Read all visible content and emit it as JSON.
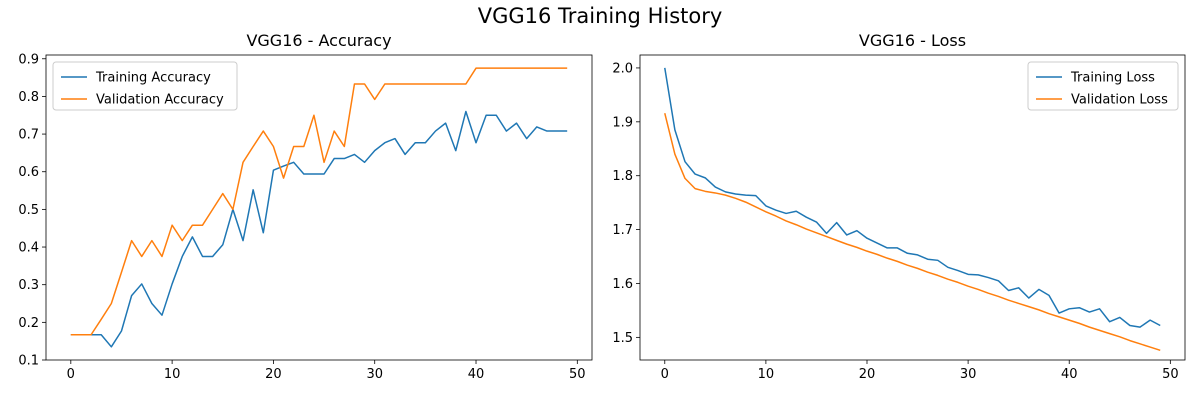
{
  "figure": {
    "title": "VGG16 Training History"
  },
  "colors": {
    "training": "#1f77b4",
    "validation": "#ff7f0e",
    "frame": "#000000",
    "legend_border": "#cccccc"
  },
  "chart_data": [
    {
      "type": "line",
      "title": "VGG16 - Accuracy",
      "xlabel": "",
      "ylabel": "",
      "xlim": [
        -2.45,
        51.45
      ],
      "ylim": [
        0.1,
        0.91
      ],
      "xticks": [
        0,
        10,
        20,
        30,
        40,
        50
      ],
      "yticks": [
        0.1,
        0.2,
        0.3,
        0.4,
        0.5,
        0.6,
        0.7,
        0.8,
        0.9
      ],
      "ytick_labels": [
        "0.1",
        "0.2",
        "0.3",
        "0.4",
        "0.5",
        "0.6",
        "0.7",
        "0.8",
        "0.9"
      ],
      "grid": false,
      "legend_position": "upper-left",
      "x": [
        0,
        1,
        2,
        3,
        4,
        5,
        6,
        7,
        8,
        9,
        10,
        11,
        12,
        13,
        14,
        15,
        16,
        17,
        18,
        19,
        20,
        21,
        22,
        23,
        24,
        25,
        26,
        27,
        28,
        29,
        30,
        31,
        32,
        33,
        34,
        35,
        36,
        37,
        38,
        39,
        40,
        41,
        42,
        43,
        44,
        45,
        46,
        47,
        48,
        49
      ],
      "series": [
        {
          "name": "Training Accuracy",
          "color_key": "training",
          "values": [
            0.167,
            0.167,
            0.167,
            0.167,
            0.135,
            0.177,
            0.271,
            0.302,
            0.25,
            0.219,
            0.302,
            0.375,
            0.427,
            0.375,
            0.375,
            0.406,
            0.5,
            0.417,
            0.552,
            0.438,
            0.604,
            0.615,
            0.625,
            0.594,
            0.594,
            0.594,
            0.635,
            0.635,
            0.646,
            0.625,
            0.656,
            0.677,
            0.688,
            0.646,
            0.677,
            0.677,
            0.708,
            0.729,
            0.656,
            0.76,
            0.677,
            0.75,
            0.75,
            0.708,
            0.729,
            0.688,
            0.719,
            0.708,
            0.708,
            0.708
          ]
        },
        {
          "name": "Validation Accuracy",
          "color_key": "validation",
          "values": [
            0.167,
            0.167,
            0.167,
            0.208,
            0.25,
            0.333,
            0.417,
            0.375,
            0.417,
            0.375,
            0.458,
            0.417,
            0.458,
            0.458,
            0.5,
            0.542,
            0.5,
            0.625,
            0.667,
            0.708,
            0.667,
            0.583,
            0.667,
            0.667,
            0.75,
            0.625,
            0.708,
            0.667,
            0.833,
            0.833,
            0.792,
            0.833,
            0.833,
            0.833,
            0.833,
            0.833,
            0.833,
            0.833,
            0.833,
            0.833,
            0.875,
            0.875,
            0.875,
            0.875,
            0.875,
            0.875,
            0.875,
            0.875,
            0.875,
            0.875
          ]
        }
      ]
    },
    {
      "type": "line",
      "title": "VGG16 - Loss",
      "xlabel": "",
      "ylabel": "",
      "xlim": [
        -2.45,
        51.45
      ],
      "ylim": [
        1.458,
        2.024
      ],
      "xticks": [
        0,
        10,
        20,
        30,
        40,
        50
      ],
      "yticks": [
        1.5,
        1.6,
        1.7,
        1.8,
        1.9,
        2.0
      ],
      "ytick_labels": [
        "1.5",
        "1.6",
        "1.7",
        "1.8",
        "1.9",
        "2.0"
      ],
      "grid": false,
      "legend_position": "upper-right",
      "x": [
        0,
        1,
        2,
        3,
        4,
        5,
        6,
        7,
        8,
        9,
        10,
        11,
        12,
        13,
        14,
        15,
        16,
        17,
        18,
        19,
        20,
        21,
        22,
        23,
        24,
        25,
        26,
        27,
        28,
        29,
        30,
        31,
        32,
        33,
        34,
        35,
        36,
        37,
        38,
        39,
        40,
        41,
        42,
        43,
        44,
        45,
        46,
        47,
        48,
        49
      ],
      "series": [
        {
          "name": "Training Loss",
          "color_key": "training",
          "values": [
            2.0,
            1.885,
            1.826,
            1.803,
            1.796,
            1.779,
            1.77,
            1.766,
            1.764,
            1.763,
            1.744,
            1.736,
            1.73,
            1.734,
            1.723,
            1.714,
            1.693,
            1.713,
            1.69,
            1.698,
            1.684,
            1.675,
            1.666,
            1.666,
            1.656,
            1.653,
            1.645,
            1.643,
            1.63,
            1.624,
            1.617,
            1.616,
            1.611,
            1.605,
            1.587,
            1.592,
            1.573,
            1.589,
            1.578,
            1.545,
            1.553,
            1.555,
            1.547,
            1.553,
            1.529,
            1.537,
            1.522,
            1.519,
            1.532,
            1.522
          ]
        },
        {
          "name": "Validation Loss",
          "color_key": "validation",
          "values": [
            1.916,
            1.84,
            1.795,
            1.776,
            1.771,
            1.768,
            1.764,
            1.758,
            1.751,
            1.742,
            1.733,
            1.725,
            1.716,
            1.709,
            1.701,
            1.694,
            1.687,
            1.68,
            1.673,
            1.667,
            1.66,
            1.654,
            1.647,
            1.641,
            1.634,
            1.628,
            1.621,
            1.615,
            1.608,
            1.602,
            1.595,
            1.589,
            1.582,
            1.576,
            1.569,
            1.563,
            1.557,
            1.551,
            1.544,
            1.538,
            1.532,
            1.526,
            1.519,
            1.513,
            1.507,
            1.501,
            1.494,
            1.488,
            1.482,
            1.476
          ]
        }
      ]
    }
  ]
}
